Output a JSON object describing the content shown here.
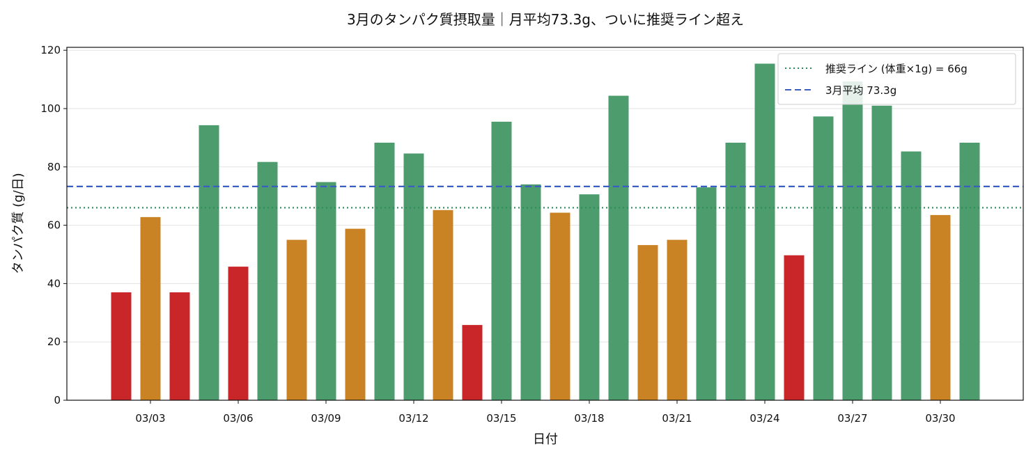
{
  "chart_data": {
    "type": "bar",
    "title": "3月のタンパク質摂取量｜月平均73.3g、ついに推奨ライン超え",
    "xlabel": "日付",
    "ylabel": "タンパク質 (g/日)",
    "ylim": [
      0,
      121
    ],
    "yticks": [
      0,
      20,
      40,
      60,
      80,
      100,
      120
    ],
    "grid": "y",
    "legend_position": "top-right",
    "x_tick_labels": [
      "03/03",
      "03/06",
      "03/09",
      "03/12",
      "03/15",
      "03/18",
      "03/21",
      "03/24",
      "03/27",
      "03/30"
    ],
    "categories": [
      "03/02",
      "03/03",
      "03/04",
      "03/05",
      "03/06",
      "03/07",
      "03/08",
      "03/09",
      "03/10",
      "03/11",
      "03/12",
      "03/13",
      "03/14",
      "03/15",
      "03/16",
      "03/17",
      "03/18",
      "03/19",
      "03/20",
      "03/21",
      "03/22",
      "03/23",
      "03/24",
      "03/25",
      "03/26",
      "03/27",
      "03/28",
      "03/29",
      "03/30",
      "03/31"
    ],
    "values": [
      37.0,
      62.8,
      37.0,
      94.3,
      45.8,
      81.7,
      55.0,
      74.8,
      58.8,
      88.3,
      84.6,
      65.2,
      25.8,
      95.5,
      74.0,
      64.3,
      70.6,
      104.4,
      53.2,
      55.0,
      73.0,
      88.3,
      115.4,
      49.7,
      97.3,
      109.3,
      101.0,
      85.3,
      63.5,
      88.3
    ],
    "reference_lines": [
      {
        "label": "推奨ライン (体重×1g) = 66g",
        "value": 66,
        "style": "dotted",
        "color": "#2e8b57"
      },
      {
        "label": "3月平均 73.3g",
        "value": 73.3,
        "style": "dashed",
        "color": "#3a5fbf"
      }
    ],
    "color_rules": {
      "high": "#4c9c6e",
      "mid": "#c98325",
      "low": "#c9262a"
    }
  }
}
